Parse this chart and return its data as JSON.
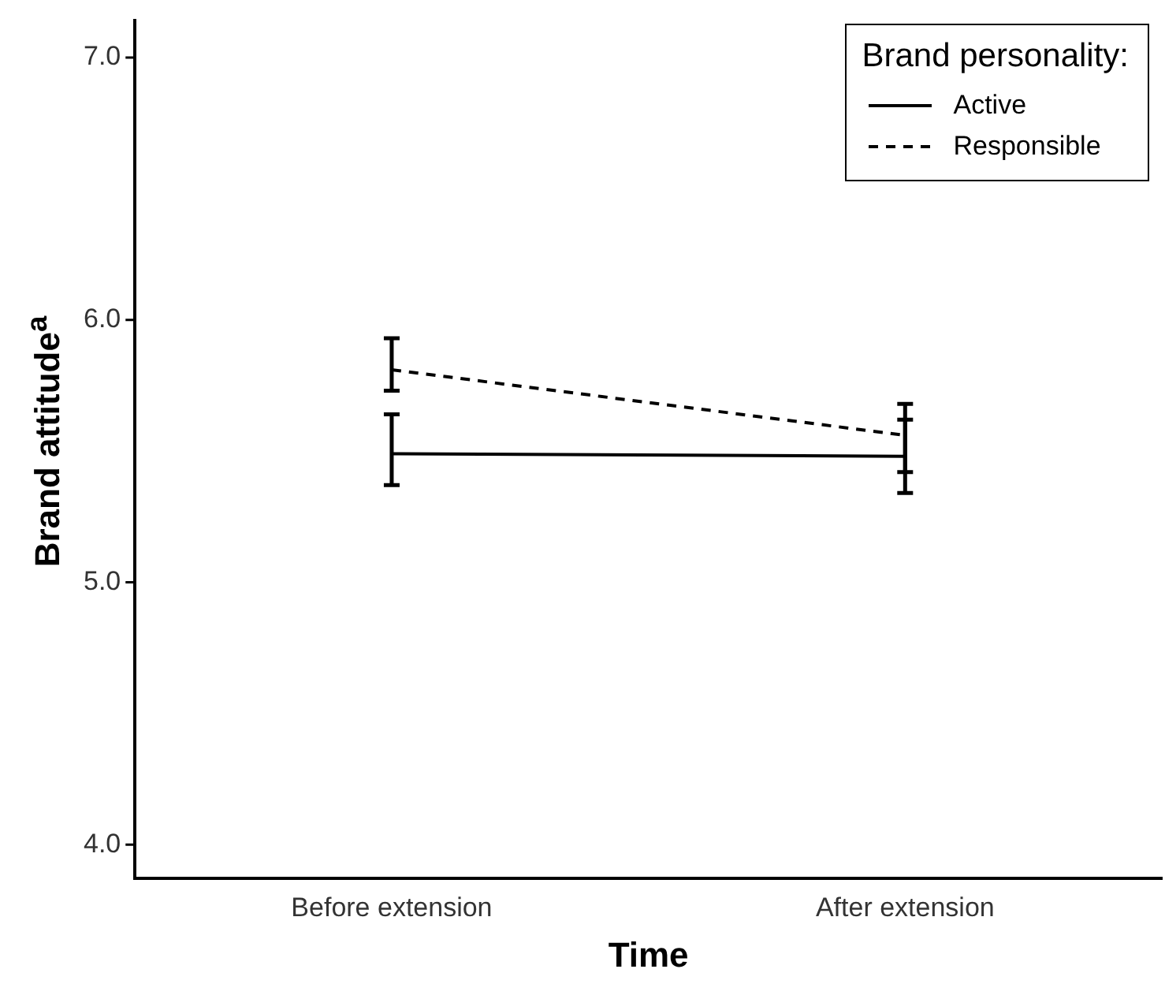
{
  "chart_data": {
    "type": "line",
    "xlabel": "Time",
    "ylabel": "Brand attitude$^{a}$",
    "legend_title": "Brand personality:",
    "legend": "top right",
    "marker": "none",
    "grid": false,
    "categories": [
      "Before extension",
      "After extension"
    ],
    "series": [
      {
        "name": "Active",
        "color": "#000000",
        "line_style": "solid",
        "values": [
          5.49,
          5.48
        ],
        "errors": [
          [
            5.37,
            5.64
          ],
          [
            5.34,
            5.62
          ]
        ]
      },
      {
        "name": "Responsible",
        "color": "#000000",
        "line_style": "dashed",
        "values": [
          5.81,
          5.56
        ],
        "errors": [
          [
            5.73,
            5.93
          ],
          [
            5.42,
            5.68
          ]
        ]
      }
    ],
    "ylim": [
      3.87,
      7.14
    ],
    "yticks": [
      {
        "value": 4,
        "label": "4.0"
      },
      {
        "value": 5,
        "label": "5.0"
      },
      {
        "value": 6,
        "label": "6.0"
      },
      {
        "value": 7,
        "label": "7.0"
      }
    ]
  }
}
